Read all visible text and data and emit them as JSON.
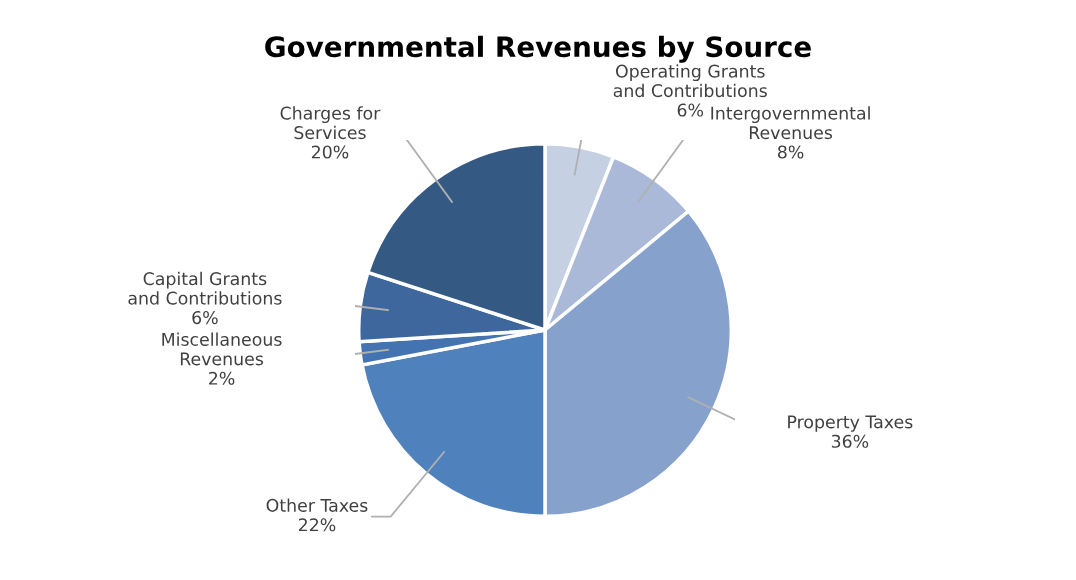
{
  "chart_data": {
    "type": "pie",
    "title": "Governmental Revenues by Source",
    "categories": [
      "Operating Grants and Contributions",
      "Intergovernmental Revenues",
      "Property Taxes",
      "Other Taxes",
      "Miscellaneous Revenues",
      "Capital Grants and Contributions",
      "Charges for Services"
    ],
    "values": [
      6,
      8,
      36,
      22,
      2,
      6,
      20
    ],
    "value_labels": [
      "6%",
      "8%",
      "36%",
      "22%",
      "2%",
      "6%",
      "20%"
    ],
    "colors": [
      "#c5d0e3",
      "#aab9d8",
      "#87a1cd",
      "#4f81bd",
      "#4373b0",
      "#3e679d",
      "#345a84"
    ]
  }
}
